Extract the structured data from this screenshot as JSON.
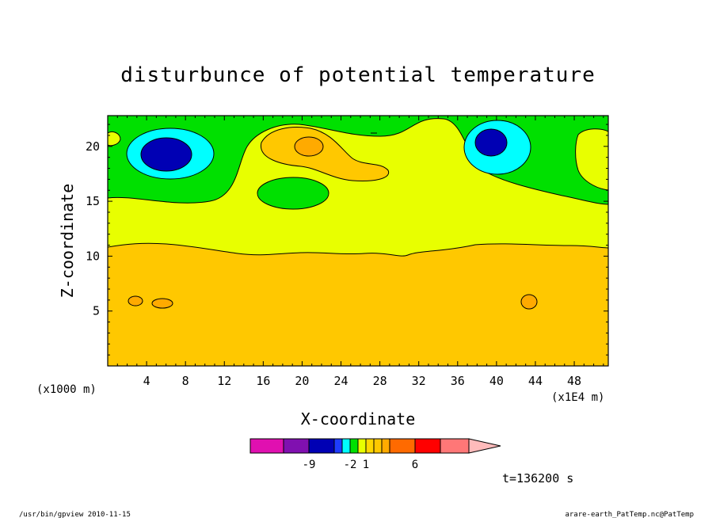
{
  "chart_data": {
    "type": "heatmap",
    "title": "disturbunce of potential temperature",
    "xlabel": "X-coordinate",
    "ylabel": "Z-coordinate",
    "xlim": [
      0,
      51.5
    ],
    "ylim": [
      0,
      22.8
    ],
    "x_ticks": [
      4,
      8,
      12,
      16,
      20,
      24,
      28,
      32,
      36,
      40,
      44,
      48
    ],
    "x_tick_labels": [
      "4",
      "8",
      "12",
      "16",
      "20",
      "24",
      "28",
      "32",
      "36",
      "40",
      "44",
      "48"
    ],
    "y_ticks": [
      5,
      10,
      15,
      20
    ],
    "y_tick_labels": [
      "5",
      "10",
      "15",
      "20"
    ],
    "x_unit_left": "(x1000 m)",
    "x_unit_right": "(x1E4 m)",
    "colorbar": {
      "colors": [
        "#e010b0",
        "#8010b0",
        "#0000b4",
        "#1e3cff",
        "#00ffff",
        "#00e000",
        "#e8ff00",
        "#ffd700",
        "#ffc800",
        "#ffaa00",
        "#ff6a00",
        "#ff0000",
        "#ff7777",
        "#ffbbbb"
      ],
      "tick_labels": [
        "-9",
        "-2",
        "1",
        "6"
      ],
      "tick_values": [
        -9,
        -2,
        1,
        6
      ]
    },
    "fields": [
      {
        "name": "base warm layer",
        "color": "#ffc800",
        "z_top_approx": 11
      },
      {
        "name": "upper layer",
        "color": "#e8ff00",
        "z_range": [
          11,
          16
        ]
      },
      {
        "name": "cold anomaly",
        "center": [
          6,
          19.3
        ],
        "color": "#0000b4"
      },
      {
        "name": "cold anomaly",
        "center": [
          39.5,
          20.5
        ],
        "color": "#0000b4"
      },
      {
        "name": "warm anomaly",
        "center": [
          21,
          20
        ],
        "color": "#ffaa00"
      },
      {
        "name": "warm spot",
        "center": [
          43,
          5.8
        ],
        "color": "#ffaa00"
      },
      {
        "name": "warm spot",
        "center": [
          5.5,
          5.7
        ],
        "color": "#ffaa00"
      }
    ]
  },
  "time_label": "t=136200 s",
  "footer_left": "/usr/bin/gpview   2010-11-15",
  "footer_right": "arare-earth_PatTemp.nc@PatTemp"
}
